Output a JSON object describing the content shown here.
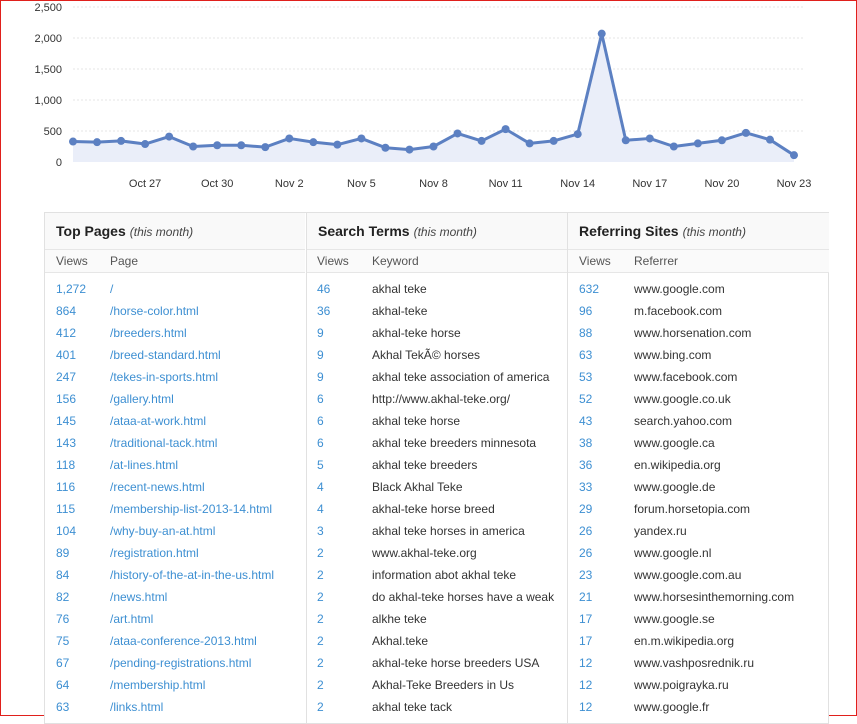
{
  "colors": {
    "frame": "#e0201c",
    "line": "#5c80c2",
    "fill": "#eaeef9",
    "link": "#3d8fd2"
  },
  "chart_data": {
    "type": "area",
    "yticks": [
      "2,500",
      "2,000",
      "1,500",
      "1,000",
      "500",
      "0"
    ],
    "ylim": [
      0,
      2500
    ],
    "grid": true,
    "xtick_labels": [
      "Oct 27",
      "Oct 30",
      "Nov 2",
      "Nov 5",
      "Nov 8",
      "Nov 11",
      "Nov 14",
      "Nov 17",
      "Nov 20",
      "Nov 23"
    ],
    "x": [
      "Oct 24",
      "Oct 25",
      "Oct 26",
      "Oct 27",
      "Oct 28",
      "Oct 29",
      "Oct 30",
      "Oct 31",
      "Nov 1",
      "Nov 2",
      "Nov 3",
      "Nov 4",
      "Nov 5",
      "Nov 6",
      "Nov 7",
      "Nov 8",
      "Nov 9",
      "Nov 10",
      "Nov 11",
      "Nov 12",
      "Nov 13",
      "Nov 14",
      "Nov 15",
      "Nov 16",
      "Nov 17",
      "Nov 18",
      "Nov 19",
      "Nov 20",
      "Nov 21",
      "Nov 22",
      "Nov 23"
    ],
    "values": [
      330,
      320,
      340,
      290,
      410,
      250,
      270,
      270,
      240,
      380,
      320,
      280,
      380,
      230,
      200,
      250,
      460,
      340,
      530,
      300,
      340,
      450,
      2070,
      350,
      380,
      250,
      300,
      350,
      470,
      360,
      110
    ]
  },
  "panels": [
    {
      "title": "Top Pages",
      "subtitle": "(this month)",
      "col_views": "Views",
      "col_label": "Page",
      "rows": [
        {
          "v": "1,272",
          "t": "/"
        },
        {
          "v": "864",
          "t": "/horse-color.html"
        },
        {
          "v": "412",
          "t": "/breeders.html"
        },
        {
          "v": "401",
          "t": "/breed-standard.html"
        },
        {
          "v": "247",
          "t": "/tekes-in-sports.html"
        },
        {
          "v": "156",
          "t": "/gallery.html"
        },
        {
          "v": "145",
          "t": "/ataa-at-work.html"
        },
        {
          "v": "143",
          "t": "/traditional-tack.html"
        },
        {
          "v": "118",
          "t": "/at-lines.html"
        },
        {
          "v": "116",
          "t": "/recent-news.html"
        },
        {
          "v": "115",
          "t": "/membership-list-2013-14.html"
        },
        {
          "v": "104",
          "t": "/why-buy-an-at.html"
        },
        {
          "v": "89",
          "t": "/registration.html"
        },
        {
          "v": "84",
          "t": "/history-of-the-at-in-the-us.html"
        },
        {
          "v": "82",
          "t": "/news.html"
        },
        {
          "v": "76",
          "t": "/art.html"
        },
        {
          "v": "75",
          "t": "/ataa-conference-2013.html"
        },
        {
          "v": "67",
          "t": "/pending-registrations.html"
        },
        {
          "v": "64",
          "t": "/membership.html"
        },
        {
          "v": "63",
          "t": "/links.html"
        }
      ]
    },
    {
      "title": "Search Terms",
      "subtitle": "(this month)",
      "col_views": "Views",
      "col_label": "Keyword",
      "rows": [
        {
          "v": "46",
          "t": "akhal teke"
        },
        {
          "v": "36",
          "t": "akhal-teke"
        },
        {
          "v": "9",
          "t": "akhal-teke horse"
        },
        {
          "v": "9",
          "t": "Akhal TekÃ© horses"
        },
        {
          "v": "9",
          "t": "akhal teke association of america"
        },
        {
          "v": "6",
          "t": "http://www.akhal-teke.org/"
        },
        {
          "v": "6",
          "t": "akhal teke horse"
        },
        {
          "v": "6",
          "t": "akhal teke breeders minnesota"
        },
        {
          "v": "5",
          "t": "akhal teke breeders"
        },
        {
          "v": "4",
          "t": "Black Akhal Teke"
        },
        {
          "v": "4",
          "t": "akhal-teke horse breed"
        },
        {
          "v": "3",
          "t": "akhal teke horses in america"
        },
        {
          "v": "2",
          "t": "www.akhal-teke.org"
        },
        {
          "v": "2",
          "t": "information abot akhal teke"
        },
        {
          "v": "2",
          "t": "do akhal-teke horses have a weak"
        },
        {
          "v": "2",
          "t": "alkhe teke"
        },
        {
          "v": "2",
          "t": "Akhal.teke"
        },
        {
          "v": "2",
          "t": "akhal-teke horse breeders USA"
        },
        {
          "v": "2",
          "t": "Akhal-Teke Breeders in Us"
        },
        {
          "v": "2",
          "t": "akhal teke tack"
        }
      ]
    },
    {
      "title": "Referring Sites",
      "subtitle": "(this month)",
      "col_views": "Views",
      "col_label": "Referrer",
      "rows": [
        {
          "v": "632",
          "t": "www.google.com"
        },
        {
          "v": "96",
          "t": "m.facebook.com"
        },
        {
          "v": "88",
          "t": "www.horsenation.com"
        },
        {
          "v": "63",
          "t": "www.bing.com"
        },
        {
          "v": "53",
          "t": "www.facebook.com"
        },
        {
          "v": "52",
          "t": "www.google.co.uk"
        },
        {
          "v": "43",
          "t": "search.yahoo.com"
        },
        {
          "v": "38",
          "t": "www.google.ca"
        },
        {
          "v": "36",
          "t": "en.wikipedia.org"
        },
        {
          "v": "33",
          "t": "www.google.de"
        },
        {
          "v": "29",
          "t": "forum.horsetopia.com"
        },
        {
          "v": "26",
          "t": "yandex.ru"
        },
        {
          "v": "26",
          "t": "www.google.nl"
        },
        {
          "v": "23",
          "t": "www.google.com.au"
        },
        {
          "v": "21",
          "t": "www.horsesinthemorning.com"
        },
        {
          "v": "17",
          "t": "www.google.se"
        },
        {
          "v": "17",
          "t": "en.m.wikipedia.org"
        },
        {
          "v": "12",
          "t": "www.vashposrednik.ru"
        },
        {
          "v": "12",
          "t": "www.poigrayka.ru"
        },
        {
          "v": "12",
          "t": "www.google.fr"
        }
      ]
    }
  ]
}
